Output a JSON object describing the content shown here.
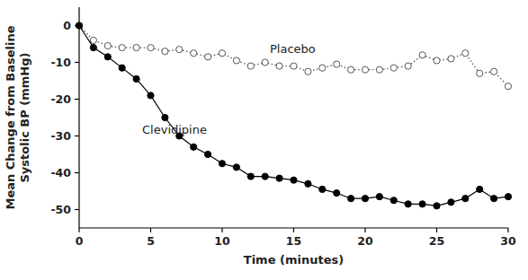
{
  "chart_data": {
    "type": "line",
    "xlabel": "Time (minutes)",
    "ylabel": "Mean Change from Baseline\nSystolic BP (mmHg)",
    "x": [
      0,
      1,
      2,
      3,
      4,
      5,
      6,
      7,
      8,
      9,
      10,
      11,
      12,
      13,
      14,
      15,
      16,
      17,
      18,
      19,
      20,
      21,
      22,
      23,
      24,
      25,
      26,
      27,
      28,
      29,
      30
    ],
    "xlim": [
      0,
      30
    ],
    "xticks": [
      0,
      5,
      10,
      15,
      20,
      25,
      30
    ],
    "ylim": [
      -55,
      5
    ],
    "yticks": [
      -50,
      -40,
      -30,
      -20,
      -10,
      0
    ],
    "grid": false,
    "series": [
      {
        "name": "Placebo",
        "color": "#555555",
        "marker": "open-circle",
        "line_style": "dotted",
        "values": [
          0,
          -4,
          -5.5,
          -6,
          -6,
          -6,
          -7,
          -6.5,
          -7.5,
          -8.5,
          -7.5,
          -9.5,
          -11,
          -10,
          -11,
          -11,
          -12.5,
          -11.5,
          -10.5,
          -12,
          -12,
          -12,
          -11.5,
          -11,
          -8,
          -9.5,
          -9,
          -7.5,
          -13,
          -12.5,
          -16.5
        ]
      },
      {
        "name": "Clevidipine",
        "color": "#000000",
        "marker": "filled-circle",
        "line_style": "solid",
        "values": [
          0,
          -6,
          -8.5,
          -11.5,
          -14.5,
          -19,
          -25,
          -30,
          -33,
          -35,
          -37.5,
          -38.5,
          -41,
          -41,
          -41.5,
          -42,
          -43,
          -44.5,
          -45.5,
          -47,
          -47,
          -46.5,
          -47.5,
          -48.5,
          -48.5,
          -49,
          -48,
          -47,
          -44.5,
          -47,
          -46.5
        ]
      }
    ]
  }
}
